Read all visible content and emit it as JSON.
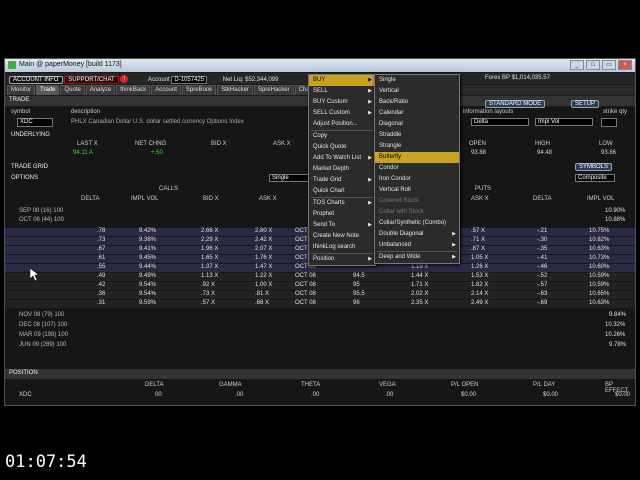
{
  "window": {
    "title": "Main @ paperMoney [build 1173]",
    "buttons": [
      "_",
      "□",
      "▭",
      "×"
    ]
  },
  "account_bar": {
    "account_info": "ACCOUNT INFO",
    "support": "SUPPORT/CHAT",
    "alert": "!",
    "account_label": "Account",
    "account_value": "D-1057425",
    "net_liq": "Net Liq: $52,344,099",
    "forex": "Forex BP $1,014,035.57"
  },
  "tabs": [
    "Monitor",
    "Trade",
    "Quote",
    "Analyze",
    "thinkBack",
    "Account",
    "SpreBook",
    "StkHacker",
    "SpreHacker",
    "Charts"
  ],
  "active_tab": "Trade",
  "trade": {
    "section": "TRADE",
    "symbol_label": "symbol",
    "description_label": "description",
    "symbol": "XDC",
    "description": "PHLX Canadian Dollar U.S. dollar settled currency Options Index",
    "info_layouts": "information layouts",
    "layout1": "Delta",
    "layout2": "Impl Vol",
    "strike_qty": "strike qty",
    "standard_mode": "STANDARD MODE",
    "setup": "SETUP"
  },
  "underlying": {
    "label": "UNDERLYING",
    "headers": [
      "LAST X",
      "NET CHNG",
      "BID X",
      "ASK X",
      "OPEN",
      "HIGH",
      "LOW"
    ],
    "values": [
      "94.11 A",
      "+.50",
      "",
      "",
      "93.88",
      "94.48",
      "93.86"
    ]
  },
  "trade_grid": {
    "label": "TRADE GRID",
    "symbols": "SYMBOLS"
  },
  "options": {
    "label": "OPTIONS",
    "single": "Single",
    "composite": "Composite",
    "calls": "CALLS",
    "puts": "PUTS",
    "headers_calls": [
      "DELTA",
      "IMPL VOL",
      "BID X",
      "ASK X"
    ],
    "headers_puts": [
      "ASK X",
      "DELTA",
      "IMPL VOL"
    ],
    "expirations_top": [
      {
        "label": "SEP 08  (16)  100",
        "iv": "10.90%"
      },
      {
        "label": "OCT 08  (44)  100",
        "iv": "10.88%"
      }
    ],
    "rows": [
      {
        "delta": ".78",
        "iv": "9.42%",
        "bid": "2.66 X",
        "ask": "2.80 X",
        "exp": "OCT 08",
        "strike": "",
        "pbid": "",
        "pask": ".57 X",
        "pdelta": "-.21",
        "piv": "10.75%",
        "itm": true
      },
      {
        "delta": ".73",
        "iv": "9.38%",
        "bid": "2.29 X",
        "ask": "2.42 X",
        "exp": "OCT 08",
        "strike": "",
        "pbid": "",
        "pask": ".71 X",
        "pdelta": "-.30",
        "piv": "10.82%",
        "itm": true
      },
      {
        "delta": ".67",
        "iv": "9.41%",
        "bid": "1.96 X",
        "ask": "2.07 X",
        "exp": "OCT 08",
        "strike": "",
        "pbid": "",
        "pask": ".87 X",
        "pdelta": "-.35",
        "piv": "10.63%",
        "itm": true
      },
      {
        "delta": ".61",
        "iv": "9.45%",
        "bid": "1.65 X",
        "ask": "1.76 X",
        "exp": "OCT 08",
        "strike": "",
        "pbid": "",
        "pask": "1.05 X",
        "pdelta": "-.41",
        "piv": "10.73%",
        "itm": true
      },
      {
        "delta": ".55",
        "iv": "9.44%",
        "bid": "1.37 X",
        "ask": "1.47 X",
        "exp": "OCT 08",
        "strike": "",
        "pbid": "1.19 X",
        "pask": "1.26 X",
        "pdelta": "-.46",
        "piv": "10.60%",
        "itm": true
      },
      {
        "delta": ".49",
        "iv": "9.49%",
        "bid": "1.13 X",
        "ask": "1.22 X",
        "exp": "OCT 08",
        "strike": "94.5",
        "pbid": "1.44 X",
        "pask": "1.53 X",
        "pdelta": "-.52",
        "piv": "10.59%",
        "itm": false
      },
      {
        "delta": ".42",
        "iv": "9.54%",
        "bid": ".92 X",
        "ask": "1.00 X",
        "exp": "OCT 08",
        "strike": "95",
        "pbid": "1.71 X",
        "pask": "1.82 X",
        "pdelta": "-.57",
        "piv": "10.59%",
        "itm": false
      },
      {
        "delta": ".36",
        "iv": "9.54%",
        "bid": ".73 X",
        "ask": ".81 X",
        "exp": "OCT 08",
        "strike": "95.5",
        "pbid": "2.02 X",
        "pask": "2.14 X",
        "pdelta": "-.63",
        "piv": "10.65%",
        "itm": false
      },
      {
        "delta": ".31",
        "iv": "9.59%",
        "bid": ".57 X",
        "ask": ".66 X",
        "exp": "OCT 08",
        "strike": "96",
        "pbid": "2.35 X",
        "pask": "2.49 X",
        "pdelta": "-.69",
        "piv": "10.63%",
        "itm": false
      }
    ],
    "expirations_bottom": [
      {
        "label": "NOV 08  (79)  100",
        "iv": "9.84%"
      },
      {
        "label": "DEC 08  (107)  100",
        "iv": "10.32%"
      },
      {
        "label": "MAR 09  (198)  100",
        "iv": "10.26%"
      },
      {
        "label": "JUN 09  (289)  100",
        "iv": "9.78%"
      }
    ]
  },
  "position": {
    "label": "POSITION",
    "headers": [
      "DELTA",
      "GAMMA",
      "THETA",
      "VEGA",
      "P/L OPEN",
      "P/L DAY",
      "BP EFFECT"
    ],
    "symbol": "XDC",
    "values": [
      "00",
      ".00",
      ".00",
      ".00",
      "$0.00",
      "$0.00",
      "$0.00"
    ]
  },
  "context_menu": {
    "items": [
      {
        "label": "BUY",
        "arrow": true,
        "selected": true
      },
      {
        "label": "SELL",
        "arrow": true
      },
      {
        "label": "BUY Custom",
        "arrow": true
      },
      {
        "label": "SELL Custom",
        "arrow": true
      },
      {
        "label": "Adjust Position...",
        "sep_after": true
      },
      {
        "label": "Copy"
      },
      {
        "label": "Quick Quote"
      },
      {
        "label": "Add To Watch List",
        "arrow": true
      },
      {
        "label": "Market Depth"
      },
      {
        "label": "Trade Grid",
        "arrow": true
      },
      {
        "label": "Quick Chart",
        "sep_after": true
      },
      {
        "label": "TOS Charts",
        "arrow": true
      },
      {
        "label": "Prophet"
      },
      {
        "label": "Send To",
        "arrow": true
      },
      {
        "label": "Create New Note"
      },
      {
        "label": "thinkLog search",
        "sep_after": true
      },
      {
        "label": "Position",
        "arrow": true
      }
    ]
  },
  "submenu": {
    "items": [
      {
        "label": "Single"
      },
      {
        "label": "Vertical"
      },
      {
        "label": "Back/Ratio"
      },
      {
        "label": "Calendar"
      },
      {
        "label": "Diagonal"
      },
      {
        "label": "Straddle"
      },
      {
        "label": "Strangle"
      },
      {
        "label": "Butterfly",
        "selected": true
      },
      {
        "label": "Condor"
      },
      {
        "label": "Iron Condor"
      },
      {
        "label": "Vertical Roll"
      },
      {
        "label": "Covered Stock",
        "disabled": true
      },
      {
        "label": "Collar with Stock",
        "disabled": true
      },
      {
        "label": "Collar/Synthetic (Combo)"
      },
      {
        "label": "Double Diagonal",
        "arrow": true
      },
      {
        "label": "Unbalanced",
        "arrow": true,
        "sep_after": true
      },
      {
        "label": "Deep and Wide",
        "arrow": true
      }
    ]
  },
  "timestamp": "01:07:54",
  "colors": {
    "menu_highlight": "#c9a21e",
    "itm_row": "#2a2a44",
    "accent": "#0d2a56"
  }
}
